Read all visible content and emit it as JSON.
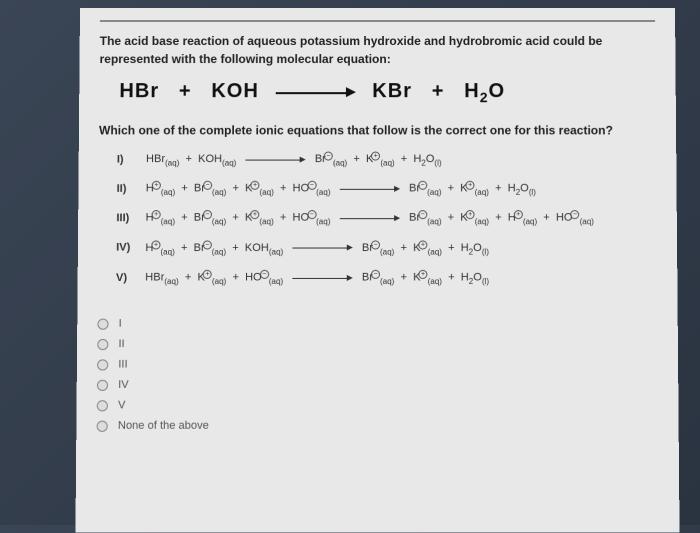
{
  "intro": "The acid base reaction of aqueous potassium hydroxide and hydrobromic acid could be represented with the following molecular equation:",
  "mainEquation": {
    "r1": "HBr",
    "r2": "KOH",
    "p1": "KBr",
    "p2part1": "H",
    "p2sub": "2",
    "p2part2": "O"
  },
  "subQuestion": "Which one of the complete ionic equations that follow is the correct one for this reaction?",
  "options": {
    "o1": {
      "label": "I)"
    },
    "o2": {
      "label": "II)"
    },
    "o3": {
      "label": "III)"
    },
    "o4": {
      "label": "IV)"
    },
    "o5": {
      "label": "V)"
    }
  },
  "answers": {
    "a1": "I",
    "a2": "II",
    "a3": "III",
    "a4": "IV",
    "a5": "V",
    "a6": "None of the above"
  }
}
